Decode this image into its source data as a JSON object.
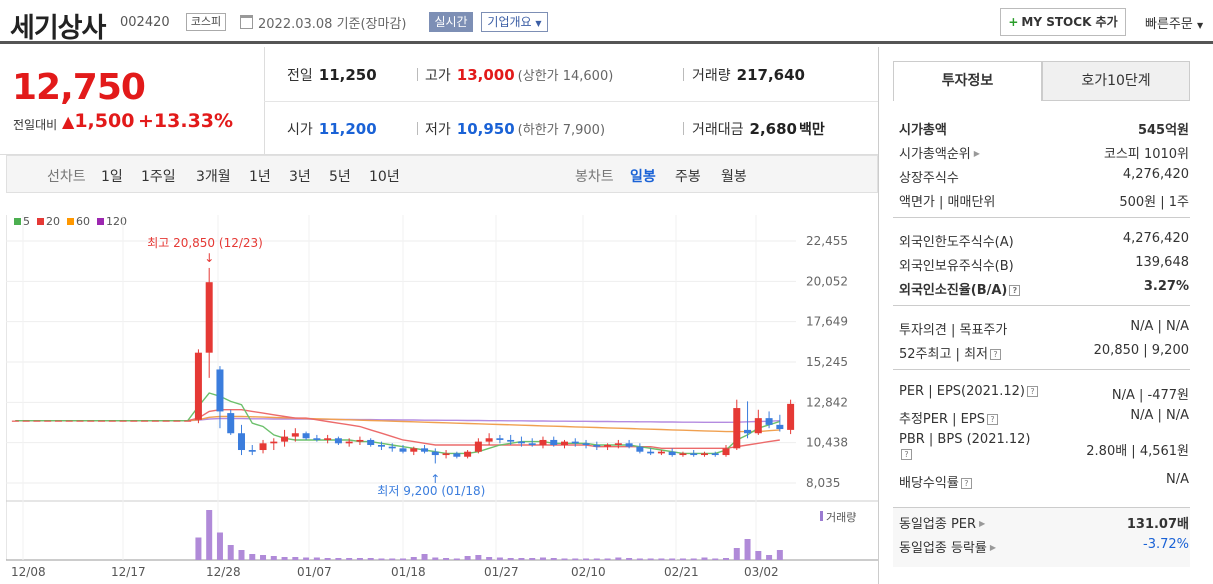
{
  "header": {
    "stock_name": "세기상사",
    "stock_code": "002420",
    "market": "코스피",
    "date": "2022.03.08 기준(장마감)",
    "realtime_label": "실시간",
    "company_label": "기업개요",
    "mystock_label": "MY STOCK 추가",
    "quick_order": "빠른주문"
  },
  "price": {
    "current": "12,750",
    "diff_label": "전일대비",
    "diff": "1,500",
    "diff_pct": "+13.33%",
    "prev_label": "전일",
    "prev": "11,250",
    "high_label": "고가",
    "high": "13,000",
    "upper_limit": "(상한가 14,600)",
    "volume_label": "거래량",
    "volume": "217,640",
    "open_label": "시가",
    "open": "11,200",
    "low_label": "저가",
    "low": "10,950",
    "lower_limit": "(하한가 7,900)",
    "amount_label": "거래대금",
    "amount": "2,680",
    "amount_unit": "백만"
  },
  "period": {
    "line_label": "선차트",
    "line_opts": [
      "1일",
      "1주일",
      "3개월",
      "1년",
      "3년",
      "5년",
      "10년"
    ],
    "candle_label": "봉차트",
    "candle_opts": [
      "일봉",
      "주봉",
      "월봉"
    ],
    "candle_selected": "일봉"
  },
  "chart_data": {
    "type": "candlestick",
    "legend": [
      "5",
      "20",
      "60",
      "120"
    ],
    "legend_colors": [
      "#4caf50",
      "#e53935",
      "#ff9800",
      "#9c27b0"
    ],
    "y_ticks": [
      "22,455",
      "20,052",
      "17,649",
      "15,245",
      "12,842",
      "10,438",
      "8,035"
    ],
    "ylim": [
      8035,
      22455
    ],
    "x_ticks": [
      "12/08",
      "12/17",
      "12/28",
      "01/07",
      "01/18",
      "01/27",
      "02/10",
      "02/21",
      "03/02"
    ],
    "high_annotation": "최고 20,850 (12/23)",
    "low_annotation": "최저 9,200 (01/18)",
    "volume_label": "거래량",
    "candles": [
      [
        11750,
        11750,
        11750,
        11750
      ],
      [
        11750,
        11750,
        11750,
        11750
      ],
      [
        11750,
        11750,
        11750,
        11750
      ],
      [
        11750,
        11750,
        11750,
        11750
      ],
      [
        11750,
        11750,
        11750,
        11750
      ],
      [
        11750,
        11750,
        11750,
        11750
      ],
      [
        11750,
        11750,
        11750,
        11750
      ],
      [
        11750,
        11750,
        11750,
        11750
      ],
      [
        11750,
        11750,
        11750,
        11750
      ],
      [
        11750,
        11750,
        11750,
        11750
      ],
      [
        11750,
        11750,
        11750,
        11750
      ],
      [
        11750,
        11750,
        11750,
        11750
      ],
      [
        11750,
        11750,
        11750,
        11750
      ],
      [
        11750,
        11750,
        11750,
        11750
      ],
      [
        11750,
        11750,
        11750,
        11750
      ],
      [
        11750,
        11750,
        11750,
        11750
      ],
      [
        11750,
        11750,
        11750,
        11750
      ],
      [
        11800,
        16000,
        11600,
        15800
      ],
      [
        15800,
        20850,
        14300,
        20000
      ],
      [
        14800,
        15000,
        11300,
        12300
      ],
      [
        12200,
        12400,
        10900,
        11000
      ],
      [
        11000,
        11500,
        9700,
        10000
      ],
      [
        10000,
        10300,
        9700,
        9900
      ],
      [
        10000,
        10600,
        9800,
        10400
      ],
      [
        10400,
        10700,
        10000,
        10500
      ],
      [
        10500,
        11200,
        10200,
        10800
      ],
      [
        10800,
        11300,
        10500,
        11000
      ],
      [
        11000,
        11100,
        10600,
        10700
      ],
      [
        10700,
        10900,
        10500,
        10600
      ],
      [
        10600,
        10900,
        10400,
        10700
      ],
      [
        10700,
        10800,
        10300,
        10400
      ],
      [
        10400,
        10700,
        10200,
        10500
      ],
      [
        10500,
        10800,
        10300,
        10600
      ],
      [
        10600,
        10700,
        10200,
        10300
      ],
      [
        10300,
        10500,
        10000,
        10200
      ],
      [
        10200,
        10400,
        9900,
        10100
      ],
      [
        10100,
        10300,
        9800,
        9900
      ],
      [
        9900,
        10200,
        9700,
        10100
      ],
      [
        10100,
        10300,
        9800,
        9900
      ],
      [
        9900,
        10100,
        9200,
        9700
      ],
      [
        9700,
        10000,
        9500,
        9800
      ],
      [
        9800,
        9900,
        9500,
        9600
      ],
      [
        9600,
        10000,
        9500,
        9900
      ],
      [
        9900,
        10700,
        9800,
        10500
      ],
      [
        10500,
        11000,
        10300,
        10700
      ],
      [
        10700,
        10900,
        10400,
        10600
      ],
      [
        10600,
        10900,
        10300,
        10500
      ],
      [
        10500,
        10800,
        10200,
        10400
      ],
      [
        10400,
        10700,
        10200,
        10300
      ],
      [
        10300,
        10800,
        10100,
        10600
      ],
      [
        10600,
        10800,
        10200,
        10300
      ],
      [
        10300,
        10600,
        10100,
        10500
      ],
      [
        10500,
        10700,
        10200,
        10400
      ],
      [
        10400,
        10600,
        10100,
        10300
      ],
      [
        10300,
        10500,
        10000,
        10200
      ],
      [
        10200,
        10400,
        10000,
        10300
      ],
      [
        10300,
        10600,
        10100,
        10400
      ],
      [
        10400,
        10600,
        10100,
        10200
      ],
      [
        10200,
        10400,
        9800,
        9900
      ],
      [
        9900,
        10100,
        9700,
        9800
      ],
      [
        9800,
        10000,
        9700,
        9900
      ],
      [
        9900,
        10100,
        9600,
        9700
      ],
      [
        9700,
        9900,
        9600,
        9800
      ],
      [
        9800,
        10000,
        9600,
        9700
      ],
      [
        9700,
        9900,
        9600,
        9800
      ],
      [
        9800,
        9900,
        9600,
        9700
      ],
      [
        9700,
        10300,
        9600,
        10100
      ],
      [
        10100,
        13000,
        10000,
        12500
      ],
      [
        11200,
        12900,
        10700,
        11000
      ],
      [
        11000,
        12400,
        10900,
        11900
      ],
      [
        11900,
        12300,
        11300,
        11500
      ],
      [
        11500,
        12100,
        11100,
        11250
      ],
      [
        11200,
        13000,
        10950,
        12750
      ]
    ],
    "ma5": [
      11750,
      11750,
      11750,
      11750,
      11750,
      11750,
      11750,
      11750,
      11750,
      11750,
      11750,
      11750,
      11750,
      11750,
      11750,
      11750,
      11750,
      12600,
      13400,
      13200,
      12900,
      12700,
      11600,
      11400,
      10900,
      10700,
      10600,
      10600,
      10600,
      10600,
      10600,
      10600,
      10500,
      10500,
      10400,
      10300,
      10200,
      10100,
      10000,
      9900,
      9800,
      9800,
      9800,
      9900,
      10100,
      10300,
      10400,
      10500,
      10500,
      10500,
      10400,
      10400,
      10400,
      10400,
      10300,
      10300,
      10300,
      10300,
      10200,
      10100,
      10000,
      9900,
      9800,
      9800,
      9800,
      9800,
      10000,
      10600,
      10900,
      11300,
      11500,
      11700
    ],
    "ma20": [
      11750,
      11750,
      11750,
      11750,
      11750,
      11750,
      11750,
      11750,
      11750,
      11750,
      11750,
      11750,
      11750,
      11750,
      11750,
      11750,
      11750,
      11900,
      12300,
      12400,
      12400,
      12400,
      12300,
      12200,
      12100,
      12000,
      11900,
      11900,
      11800,
      11700,
      11600,
      11500,
      11400,
      11200,
      11000,
      10800,
      10600,
      10500,
      10400,
      10300,
      10300,
      10300,
      10300,
      10300,
      10300,
      10300,
      10300,
      10300,
      10300,
      10300,
      10300,
      10300,
      10300,
      10300,
      10200,
      10200,
      10200,
      10200,
      10200,
      10200,
      10100,
      10100,
      10100,
      10100,
      10100,
      10100,
      10100,
      10200,
      10300,
      10400,
      10500,
      10600
    ],
    "ma60": [
      11750,
      11750,
      11750,
      11750,
      11750,
      11750,
      11750,
      11750,
      11750,
      11750,
      11750,
      11750,
      11750,
      11750,
      11750,
      11750,
      11750,
      11800,
      11950,
      12000,
      12000,
      12000,
      11980,
      11960,
      11940,
      11920,
      11900,
      11880,
      11860,
      11840,
      11820,
      11800,
      11780,
      11760,
      11740,
      11720,
      11700,
      11680,
      11660,
      11640,
      11620,
      11600,
      11580,
      11560,
      11540,
      11520,
      11500,
      11480,
      11460,
      11440,
      11420,
      11400,
      11380,
      11360,
      11340,
      11320,
      11300,
      11280,
      11260,
      11240,
      11220,
      11200,
      11180,
      11160,
      11140,
      11120,
      11100,
      11100,
      11100,
      11100,
      11150,
      11200
    ],
    "ma120": [
      11750,
      11750,
      11750,
      11750,
      11750,
      11750,
      11750,
      11750,
      11750,
      11750,
      11750,
      11750,
      11750,
      11750,
      11750,
      11750,
      11750,
      11780,
      11850,
      11870,
      11870,
      11870,
      11860,
      11860,
      11850,
      11850,
      11840,
      11840,
      11830,
      11830,
      11820,
      11820,
      11810,
      11810,
      11800,
      11800,
      11790,
      11790,
      11780,
      11780,
      11770,
      11770,
      11760,
      11760,
      11750,
      11750,
      11740,
      11740,
      11730,
      11730,
      11720,
      11720,
      11710,
      11710,
      11700,
      11700,
      11690,
      11690,
      11680,
      11680,
      11670,
      11670,
      11660,
      11660,
      11650,
      11650,
      11650,
      11660,
      11680,
      11700,
      11720,
      11750
    ],
    "volumes": [
      0,
      0,
      0,
      0,
      0,
      0,
      0,
      0,
      0,
      0,
      0,
      0,
      0,
      0,
      0,
      0,
      0,
      0.45,
      1.0,
      0.55,
      0.3,
      0.2,
      0.12,
      0.1,
      0.08,
      0.06,
      0.06,
      0.05,
      0.05,
      0.04,
      0.04,
      0.04,
      0.04,
      0.04,
      0.03,
      0.03,
      0.03,
      0.06,
      0.12,
      0.05,
      0.04,
      0.03,
      0.08,
      0.1,
      0.06,
      0.05,
      0.04,
      0.04,
      0.04,
      0.05,
      0.04,
      0.03,
      0.03,
      0.03,
      0.03,
      0.03,
      0.05,
      0.04,
      0.03,
      0.03,
      0.03,
      0.03,
      0.03,
      0.03,
      0.05,
      0.03,
      0.04,
      0.24,
      0.42,
      0.18,
      0.1,
      0.2
    ]
  },
  "side": {
    "tab_active": "투자정보",
    "tab_other": "호가10단계",
    "market_cap_label": "시가총액",
    "market_cap": "545억원",
    "cap_rank_label": "시가총액순위",
    "cap_rank": "코스피 1010위",
    "shares_label": "상장주식수",
    "shares": "4,276,420",
    "par_label": "액면가 | 매매단위",
    "par": "500원 | 1주",
    "foreign_limit_label": "외국인한도주식수(A)",
    "foreign_limit": "4,276,420",
    "foreign_hold_label": "외국인보유주식수(B)",
    "foreign_hold": "139,648",
    "foreign_ratio_label": "외국인소진율(B/A)",
    "foreign_ratio": "3.27%",
    "opinion_label": "투자의견 | 목표주가",
    "opinion": "N/A | N/A",
    "w52_label": "52주최고 | 최저",
    "w52": "20,850 | 9,200",
    "per_label": "PER | EPS(2021.12)",
    "per": "N/A | -477원",
    "est_per_label": "추정PER | EPS",
    "est_per": "N/A | N/A",
    "pbr_label": "PBR | BPS (2021.12)",
    "pbr": "2.80배 | 4,561원",
    "div_label": "배당수익률",
    "div": "N/A",
    "ind_per_label": "동일업종 PER",
    "ind_per": "131.07배",
    "ind_rate_label": "동일업종 등락률",
    "ind_rate": "-3.72%"
  }
}
